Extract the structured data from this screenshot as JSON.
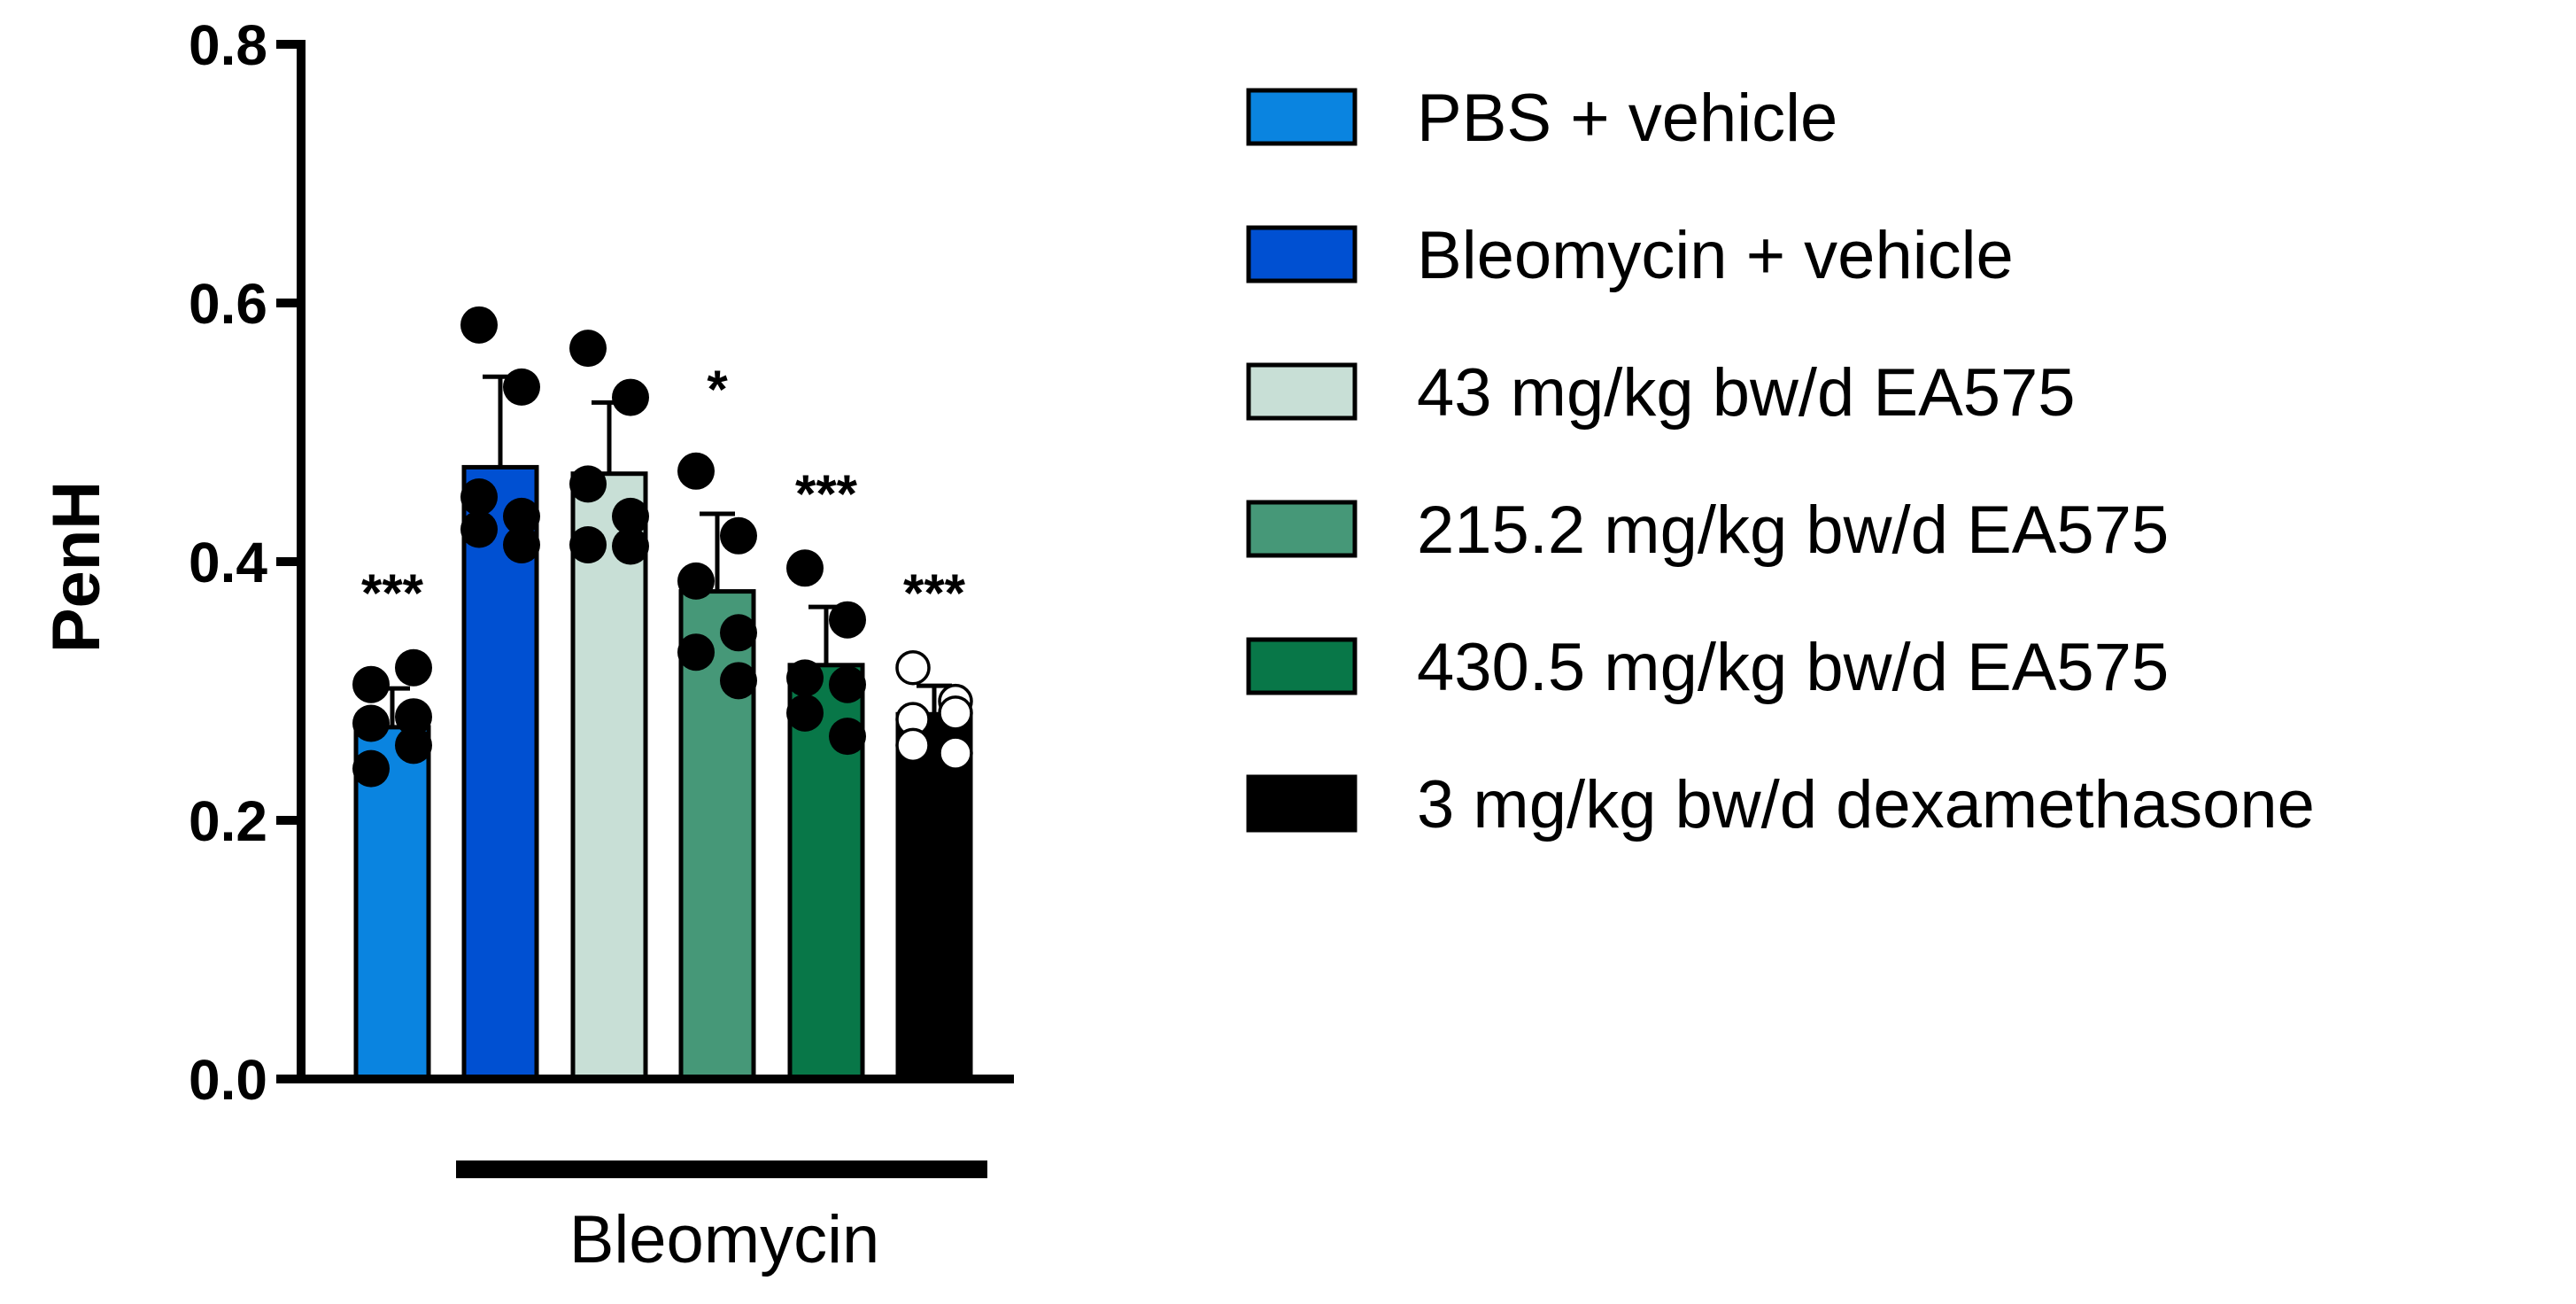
{
  "chart_data": {
    "type": "bar",
    "ylabel": "PenH",
    "xlabel": "",
    "ylim": [
      0,
      0.8
    ],
    "yticks": [
      {
        "value": 0.0,
        "label": "0.0"
      },
      {
        "value": 0.2,
        "label": "0.2"
      },
      {
        "value": 0.4,
        "label": "0.4"
      },
      {
        "value": 0.6,
        "label": "0.6"
      },
      {
        "value": 0.8,
        "label": "0.8"
      }
    ],
    "grid": false,
    "legend_position": "right",
    "categories": [
      "PBS + vehicle",
      "Bleomycin + vehicle",
      "43 mg/kg bw/d EA575",
      "215.2 mg/kg bw/d EA575",
      "430.5 mg/kg bw/d EA575",
      "3 mg/kg bw/d dexamethasone"
    ],
    "values": [
      0.272,
      0.473,
      0.468,
      0.377,
      0.32,
      0.282
    ],
    "errors": [
      0.03,
      0.07,
      0.055,
      0.06,
      0.045,
      0.022
    ],
    "colors": [
      "#0a84e0",
      "#0050d2",
      "#c8dfd6",
      "#469878",
      "#087748",
      "#000000"
    ],
    "points": [
      [
        0.305,
        0.318,
        0.275,
        0.28,
        0.24,
        0.258
      ],
      [
        0.583,
        0.535,
        0.45,
        0.435,
        0.425,
        0.413
      ],
      [
        0.565,
        0.527,
        0.46,
        0.435,
        0.413,
        0.412
      ],
      [
        0.47,
        0.42,
        0.385,
        0.345,
        0.33,
        0.308
      ],
      [
        0.395,
        0.355,
        0.31,
        0.305,
        0.283,
        0.265
      ],
      [
        0.318,
        0.292,
        0.278,
        0.283,
        0.258,
        0.252
      ]
    ],
    "hollow_points": [
      false,
      false,
      false,
      false,
      false,
      true
    ],
    "significance": [
      "***",
      "",
      "",
      "*",
      "***",
      "***"
    ],
    "group_bracket": {
      "label": "Bleomycin",
      "from_index": 1,
      "to_index": 5
    }
  }
}
